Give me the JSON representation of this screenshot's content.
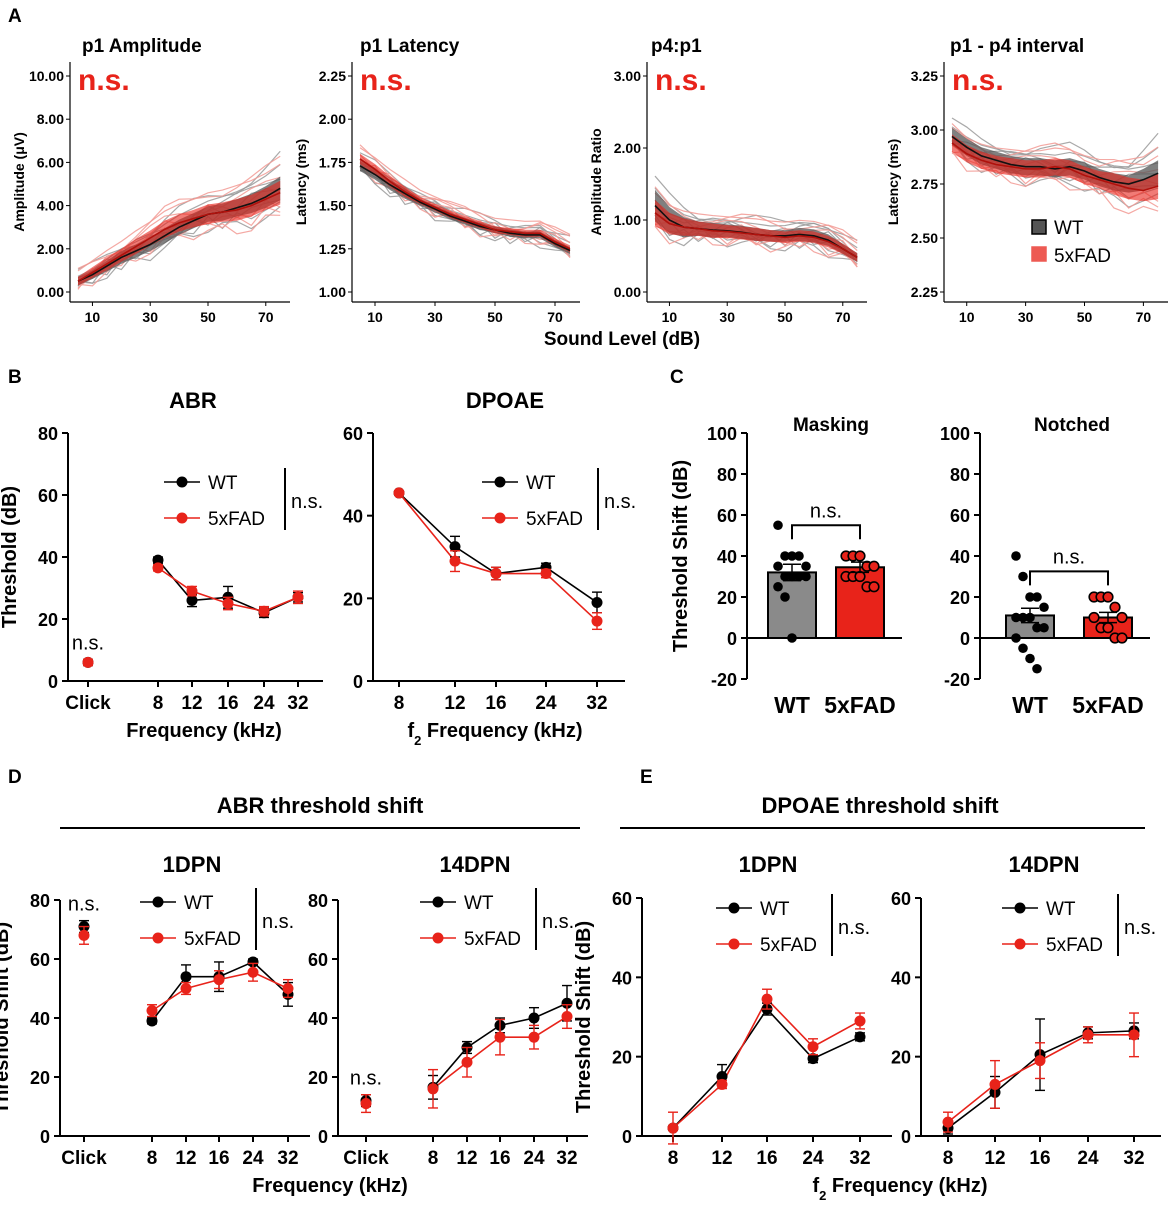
{
  "panel_labels": [
    "A",
    "B",
    "C",
    "D",
    "E"
  ],
  "colors": {
    "wt": "#000000",
    "fad": "#e8231a",
    "wt_band": "#555555",
    "fad_band": "#e8231a",
    "wt_thin": "#9a9a9a",
    "fad_thin": "#f29a94",
    "wt_bar": "#8a8a8a",
    "fad_bar": "#e8231a"
  },
  "panelA": {
    "xlabel": "Sound Level (dB)",
    "legend": {
      "wt": "WT",
      "fad": "5xFAD"
    }
  },
  "panelD": {
    "title": "ABR threshold shift"
  },
  "panelE": {
    "title": "DPOAE threshold shift"
  },
  "chart_data": [
    {
      "id": "A1",
      "type": "line",
      "title": "p1 Amplitude",
      "ylabel": "Amplitude (μV)",
      "annotation": "n.s.",
      "x": [
        5,
        10,
        15,
        20,
        25,
        30,
        35,
        40,
        45,
        50,
        55,
        60,
        65,
        70,
        75
      ],
      "ylim": [
        0,
        10
      ],
      "yticks": [
        "0.00",
        "2.00",
        "4.00",
        "6.00",
        "8.00",
        "10.00"
      ],
      "xticks": [
        "10",
        "30",
        "50",
        "70"
      ],
      "series": [
        {
          "name": "WT",
          "values": [
            0.5,
            0.8,
            1.2,
            1.6,
            1.9,
            2.2,
            2.6,
            3.0,
            3.3,
            3.6,
            3.7,
            3.9,
            4.1,
            4.4,
            4.8
          ],
          "sem": [
            0.2,
            0.2,
            0.25,
            0.3,
            0.3,
            0.3,
            0.35,
            0.35,
            0.35,
            0.35,
            0.4,
            0.4,
            0.45,
            0.5,
            0.55
          ]
        },
        {
          "name": "5xFAD",
          "values": [
            0.5,
            0.9,
            1.3,
            1.7,
            2.1,
            2.5,
            2.9,
            3.2,
            3.4,
            3.6,
            3.7,
            3.8,
            4.0,
            4.3,
            4.6
          ],
          "sem": [
            0.2,
            0.25,
            0.3,
            0.3,
            0.35,
            0.35,
            0.4,
            0.4,
            0.4,
            0.45,
            0.45,
            0.5,
            0.5,
            0.5,
            0.55
          ]
        }
      ]
    },
    {
      "id": "A2",
      "type": "line",
      "title": "p1 Latency",
      "ylabel": "Latency (ms)",
      "annotation": "n.s.",
      "x": [
        5,
        10,
        15,
        20,
        25,
        30,
        35,
        40,
        45,
        50,
        55,
        60,
        65,
        70,
        75
      ],
      "ylim": [
        1.0,
        2.25
      ],
      "yticks": [
        "1.00",
        "1.25",
        "1.50",
        "1.75",
        "2.00",
        "2.25"
      ],
      "xticks": [
        "10",
        "30",
        "50",
        "70"
      ],
      "series": [
        {
          "name": "WT",
          "values": [
            1.73,
            1.68,
            1.62,
            1.57,
            1.52,
            1.48,
            1.44,
            1.41,
            1.38,
            1.36,
            1.34,
            1.33,
            1.33,
            1.28,
            1.24
          ],
          "sem": [
            0.03,
            0.03,
            0.03,
            0.03,
            0.02,
            0.02,
            0.02,
            0.02,
            0.02,
            0.02,
            0.02,
            0.02,
            0.02,
            0.02,
            0.02
          ]
        },
        {
          "name": "5xFAD",
          "values": [
            1.77,
            1.71,
            1.64,
            1.58,
            1.53,
            1.49,
            1.45,
            1.42,
            1.39,
            1.36,
            1.35,
            1.34,
            1.34,
            1.29,
            1.25
          ],
          "sem": [
            0.03,
            0.03,
            0.03,
            0.03,
            0.02,
            0.02,
            0.02,
            0.02,
            0.02,
            0.02,
            0.02,
            0.02,
            0.02,
            0.02,
            0.02
          ]
        }
      ]
    },
    {
      "id": "A3",
      "type": "line",
      "title": "p4:p1",
      "ylabel": "Amplitude Ratio",
      "annotation": "n.s.",
      "x": [
        5,
        10,
        15,
        20,
        25,
        30,
        35,
        40,
        45,
        50,
        55,
        60,
        65,
        70,
        75
      ],
      "ylim": [
        0,
        3.0
      ],
      "yticks": [
        "0.00",
        "1.00",
        "2.00",
        "3.00"
      ],
      "xticks": [
        "10",
        "30",
        "50",
        "70"
      ],
      "series": [
        {
          "name": "WT",
          "values": [
            1.2,
            1.0,
            0.9,
            0.88,
            0.86,
            0.85,
            0.83,
            0.8,
            0.78,
            0.78,
            0.8,
            0.78,
            0.72,
            0.6,
            0.48
          ],
          "sem": [
            0.22,
            0.18,
            0.14,
            0.1,
            0.1,
            0.09,
            0.09,
            0.09,
            0.08,
            0.08,
            0.09,
            0.09,
            0.08,
            0.07,
            0.06
          ]
        },
        {
          "name": "5xFAD",
          "values": [
            1.1,
            0.95,
            0.9,
            0.88,
            0.85,
            0.84,
            0.82,
            0.8,
            0.78,
            0.76,
            0.78,
            0.76,
            0.7,
            0.6,
            0.48
          ],
          "sem": [
            0.18,
            0.15,
            0.12,
            0.1,
            0.1,
            0.09,
            0.09,
            0.09,
            0.08,
            0.08,
            0.08,
            0.08,
            0.08,
            0.07,
            0.06
          ]
        }
      ]
    },
    {
      "id": "A4",
      "type": "line",
      "title": "p1 - p4 interval",
      "ylabel": "Latency (ms)",
      "annotation": "n.s.",
      "x": [
        5,
        10,
        15,
        20,
        25,
        30,
        35,
        40,
        45,
        50,
        55,
        60,
        65,
        70,
        75
      ],
      "ylim": [
        2.25,
        3.25
      ],
      "yticks": [
        "2.25",
        "2.50",
        "2.75",
        "3.00",
        "3.25"
      ],
      "xticks": [
        "10",
        "30",
        "50",
        "70"
      ],
      "series": [
        {
          "name": "WT",
          "values": [
            2.97,
            2.92,
            2.88,
            2.86,
            2.84,
            2.83,
            2.83,
            2.82,
            2.83,
            2.81,
            2.78,
            2.76,
            2.75,
            2.77,
            2.8
          ],
          "sem": [
            0.04,
            0.04,
            0.04,
            0.04,
            0.04,
            0.04,
            0.04,
            0.04,
            0.04,
            0.04,
            0.04,
            0.04,
            0.04,
            0.05,
            0.06
          ]
        },
        {
          "name": "5xFAD",
          "values": [
            2.94,
            2.89,
            2.86,
            2.84,
            2.83,
            2.82,
            2.82,
            2.83,
            2.82,
            2.79,
            2.77,
            2.75,
            2.73,
            2.72,
            2.74
          ],
          "sem": [
            0.04,
            0.04,
            0.04,
            0.04,
            0.04,
            0.04,
            0.04,
            0.04,
            0.04,
            0.04,
            0.04,
            0.05,
            0.05,
            0.05,
            0.06
          ]
        }
      ]
    },
    {
      "id": "B1",
      "type": "line",
      "title": "ABR",
      "xlabel": "Frequency (kHz)",
      "ylabel": "Threshold (dB)",
      "categories": [
        "Click",
        "8",
        "12",
        "16",
        "24",
        "32"
      ],
      "ylim": [
        0,
        80
      ],
      "yticks": [
        "0",
        "20",
        "40",
        "60",
        "80"
      ],
      "annotation": "n.s.",
      "click_annotation": "n.s.",
      "series": [
        {
          "name": "WT",
          "values": [
            6,
            39,
            26,
            27,
            22,
            27
          ],
          "err": [
            1,
            1,
            2,
            3.5,
            1.5,
            1.5
          ]
        },
        {
          "name": "5xFAD",
          "values": [
            6,
            36.5,
            29,
            25,
            22.5,
            27
          ],
          "err": [
            1,
            1,
            1.5,
            2,
            1.5,
            2
          ]
        }
      ]
    },
    {
      "id": "B2",
      "type": "line",
      "title": "DPOAE",
      "xlabel": "f2 Frequency (kHz)",
      "ylabel": "",
      "categories": [
        "8",
        "12",
        "16",
        "24",
        "32"
      ],
      "ylim": [
        0,
        60
      ],
      "yticks": [
        "0",
        "20",
        "40",
        "60"
      ],
      "annotation": "n.s.",
      "series": [
        {
          "name": "WT",
          "values": [
            45.5,
            32.5,
            26,
            27.5,
            19
          ],
          "err": [
            0.5,
            2.5,
            1.5,
            1,
            2.5
          ]
        },
        {
          "name": "5xFAD",
          "values": [
            45.5,
            29,
            26,
            26,
            14.5
          ],
          "err": [
            0.5,
            2.5,
            1.5,
            1,
            2
          ]
        }
      ]
    },
    {
      "id": "C1",
      "type": "bar",
      "title": "Masking",
      "ylabel": "Threshold Shift (dB)",
      "categories": [
        "WT",
        "5xFAD"
      ],
      "values": [
        32,
        34.5
      ],
      "err": [
        4,
        2.5
      ],
      "ylim": [
        -20,
        100
      ],
      "yticks": [
        "-20",
        "0",
        "20",
        "40",
        "60",
        "80",
        "100"
      ],
      "annotation": "n.s.",
      "points": [
        [
          55,
          40,
          40,
          40,
          35,
          35,
          30,
          30,
          30,
          30,
          25,
          20,
          0
        ],
        [
          40,
          40,
          40,
          35,
          35,
          30,
          30,
          30,
          25,
          25
        ]
      ]
    },
    {
      "id": "C2",
      "type": "bar",
      "title": "Notched",
      "ylabel": "",
      "categories": [
        "WT",
        "5xFAD"
      ],
      "values": [
        11,
        10
      ],
      "err": [
        3.5,
        2.5
      ],
      "ylim": [
        -20,
        100
      ],
      "yticks": [
        "-20",
        "0",
        "20",
        "40",
        "60",
        "80",
        "100"
      ],
      "annotation": "n.s.",
      "points": [
        [
          40,
          30,
          20,
          20,
          15,
          10,
          10,
          10,
          5,
          5,
          0,
          -5,
          -10,
          -15
        ],
        [
          20,
          20,
          20,
          15,
          10,
          10,
          5,
          5,
          0,
          0
        ]
      ]
    },
    {
      "id": "D1",
      "type": "line",
      "title": "1DPN",
      "xlabel": "",
      "ylabel": "Threshold Shift (dB)",
      "categories": [
        "Click",
        "8",
        "12",
        "16",
        "24",
        "32"
      ],
      "ylim": [
        0,
        80
      ],
      "yticks": [
        "0",
        "20",
        "40",
        "60",
        "80"
      ],
      "annotation": "n.s.",
      "click_annotation": "n.s.",
      "series": [
        {
          "name": "WT",
          "values": [
            71,
            39,
            54,
            54,
            59,
            48
          ],
          "err": [
            2,
            1,
            4,
            5,
            1,
            4
          ]
        },
        {
          "name": "5xFAD",
          "values": [
            68,
            42.5,
            50,
            53,
            55.5,
            50
          ],
          "err": [
            3,
            2,
            2,
            3,
            3,
            3
          ]
        }
      ]
    },
    {
      "id": "D2",
      "type": "line",
      "title": "14DPN",
      "xlabel": "Frequency (kHz)",
      "ylabel": "",
      "categories": [
        "Click",
        "8",
        "12",
        "16",
        "24",
        "32"
      ],
      "ylim": [
        0,
        80
      ],
      "yticks": [
        "0",
        "20",
        "40",
        "60",
        "80"
      ],
      "annotation": "n.s.",
      "click_annotation": "n.s.",
      "series": [
        {
          "name": "WT",
          "values": [
            12,
            16.5,
            30,
            37.5,
            40,
            45
          ],
          "err": [
            2,
            4,
            2,
            2.5,
            3.5,
            6
          ]
        },
        {
          "name": "5xFAD",
          "values": [
            11,
            16,
            25,
            33.5,
            33.5,
            40.5
          ],
          "err": [
            3,
            6.5,
            5,
            6,
            4,
            4
          ]
        }
      ]
    },
    {
      "id": "E1",
      "type": "line",
      "title": "1DPN",
      "xlabel": "",
      "ylabel": "Threshold Shift (dB)",
      "categories": [
        "8",
        "12",
        "16",
        "24",
        "32"
      ],
      "ylim": [
        0,
        60
      ],
      "yticks": [
        "0",
        "20",
        "40",
        "60"
      ],
      "annotation": "n.s.",
      "series": [
        {
          "name": "WT",
          "values": [
            2,
            15,
            32,
            19.5,
            25
          ],
          "err": [
            0.5,
            3,
            1.5,
            1,
            1
          ]
        },
        {
          "name": "5xFAD",
          "values": [
            2,
            13,
            34.5,
            22.5,
            29
          ],
          "err": [
            4,
            1,
            2.5,
            2,
            2
          ]
        }
      ]
    },
    {
      "id": "E2",
      "type": "line",
      "title": "14DPN",
      "xlabel": "f2 Frequency (kHz)",
      "ylabel": "",
      "categories": [
        "8",
        "12",
        "16",
        "24",
        "32"
      ],
      "ylim": [
        0,
        60
      ],
      "yticks": [
        "0",
        "20",
        "40",
        "60"
      ],
      "annotation": "n.s.",
      "series": [
        {
          "name": "WT",
          "values": [
            2,
            11,
            20.5,
            26,
            26.5
          ],
          "err": [
            1.5,
            4,
            9,
            1.5,
            2
          ]
        },
        {
          "name": "5xFAD",
          "values": [
            3.5,
            13,
            19,
            25.5,
            25.5
          ],
          "err": [
            2.5,
            6,
            4.5,
            2,
            5.5
          ]
        }
      ]
    }
  ]
}
